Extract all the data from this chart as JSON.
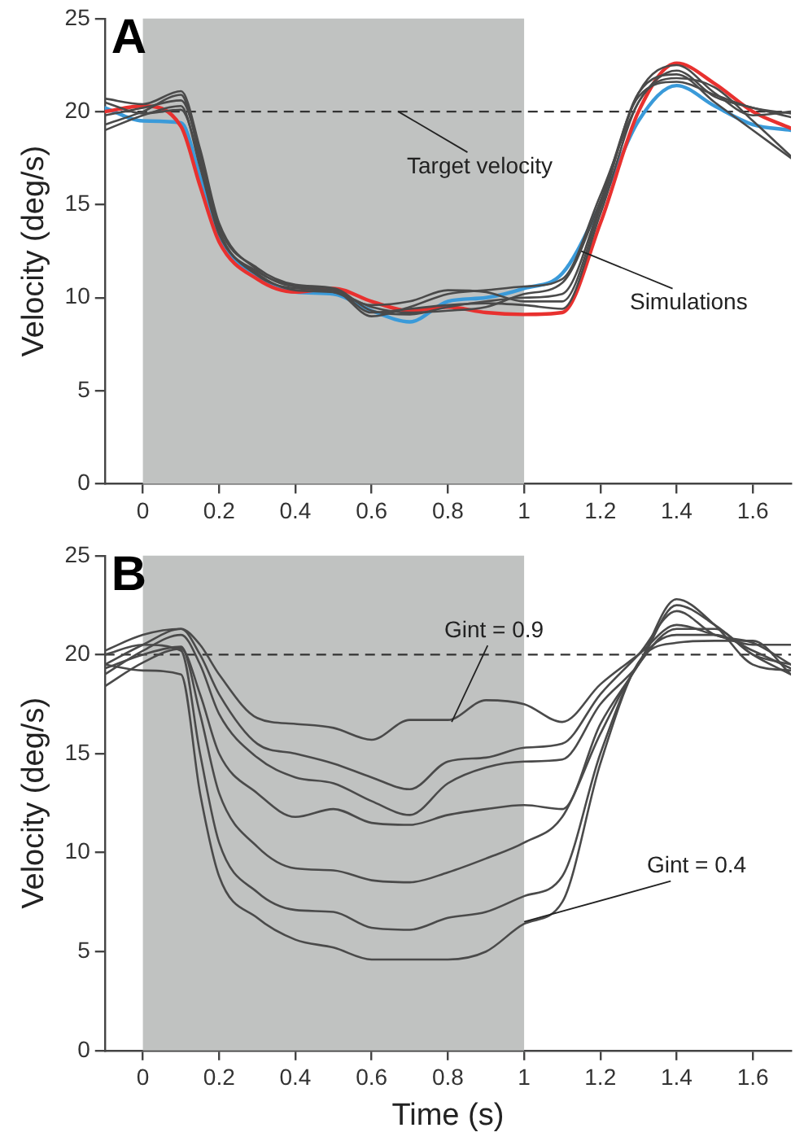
{
  "chart_data": [
    {
      "type": "line",
      "ylabel": "Velocity (deg/s)",
      "annotations": [
        "A",
        {
          "text": "Target velocity",
          "x": 0.67,
          "y": 20
        },
        {
          "text": "Simulations",
          "x": 1.15,
          "y": 12.5
        }
      ],
      "x": [
        -0.1,
        0,
        0.1,
        0.15,
        0.2,
        0.3,
        0.4,
        0.5,
        0.6,
        0.7,
        0.8,
        0.9,
        1.0,
        1.1,
        1.2,
        1.3,
        1.4,
        1.5,
        1.6,
        1.7
      ],
      "series": [
        {
          "color": "#4a4a4a",
          "values": [
            20.7,
            20.4,
            21.1,
            18,
            14,
            11.5,
            10.6,
            10.5,
            9.3,
            9.1,
            9.5,
            9.8,
            10,
            10.2,
            15,
            21,
            22.5,
            21,
            19.8,
            20
          ]
        },
        {
          "color": "#4a4a4a",
          "values": [
            19.3,
            20,
            20.9,
            17.5,
            13.6,
            11.2,
            10.5,
            10.4,
            9.0,
            9.5,
            10.2,
            10.4,
            10.6,
            11,
            15.5,
            20.5,
            22.2,
            20.8,
            20.2,
            19.7
          ]
        },
        {
          "color": "#4a4a4a",
          "values": [
            19,
            19.8,
            20.3,
            17,
            13.4,
            11.4,
            10.6,
            10.3,
            9.6,
            9.8,
            10.4,
            10.3,
            9.8,
            9.8,
            14.8,
            21,
            22,
            20.5,
            19,
            17.5
          ]
        },
        {
          "color": "#4a4a4a",
          "values": [
            19.8,
            20.2,
            20.6,
            17.8,
            13.8,
            11.6,
            10.7,
            10.5,
            9.2,
            9.4,
            9.6,
            9.7,
            9.6,
            9.4,
            14.5,
            20.5,
            21.8,
            21.3,
            19.5,
            17.6
          ]
        },
        {
          "color": "#4a4a4a",
          "values": [
            20.5,
            19.9,
            20.1,
            17.3,
            13.5,
            11.3,
            10.4,
            10.3,
            9.5,
            9.2,
            9.3,
            9.5,
            10.2,
            10.8,
            15.2,
            20.8,
            21.6,
            20.9,
            20.2,
            19.9
          ]
        },
        {
          "color": "#e8312f",
          "values": [
            20,
            20.3,
            19.2,
            16,
            13,
            11,
            10.3,
            10.5,
            9.8,
            9.3,
            9.5,
            9.2,
            9.1,
            9.2,
            14,
            20,
            22.6,
            21.5,
            20,
            19.1
          ]
        },
        {
          "color": "#3a9ad9",
          "values": [
            20.2,
            19.5,
            19.4,
            16.5,
            13.2,
            11.2,
            10.3,
            10.2,
            9.3,
            8.7,
            9.8,
            10,
            10.5,
            11.3,
            15,
            19.5,
            21.4,
            20.3,
            19.3,
            19
          ]
        }
      ],
      "xlim": [
        -0.1,
        1.7
      ],
      "xticks": [
        0,
        0.2,
        0.4,
        0.6,
        0.8,
        1,
        1.2,
        1.4,
        1.6
      ],
      "ylim": [
        0,
        25
      ],
      "yticks": [
        0,
        5,
        10,
        15,
        20,
        25
      ],
      "ref_lines": [
        {
          "axis": "y",
          "value": 20,
          "color": "#333333",
          "line_style": "dashed"
        }
      ],
      "bands": [
        {
          "axis": "x",
          "from": 0,
          "to": 1,
          "color": "#c0c2c1"
        }
      ],
      "grid": false,
      "legend": false,
      "marker": "none",
      "line_style": "solid"
    },
    {
      "type": "line",
      "xlabel": "Time (s)",
      "ylabel": "Velocity (deg/s)",
      "annotations": [
        "B",
        {
          "text": "Gint = 0.9",
          "x": 0.81,
          "y": 16.6
        },
        {
          "text": "Gint = 0.4",
          "x": 1.0,
          "y": 6.5
        }
      ],
      "x": [
        -0.1,
        0,
        0.1,
        0.15,
        0.2,
        0.3,
        0.4,
        0.5,
        0.6,
        0.7,
        0.8,
        0.9,
        1.0,
        1.1,
        1.2,
        1.3,
        1.4,
        1.5,
        1.6,
        1.7
      ],
      "series": [
        {
          "color": "#4a4a4a",
          "values": [
            19.5,
            20.5,
            21.3,
            20.5,
            19,
            16.8,
            16.5,
            16.3,
            15.7,
            16.7,
            16.7,
            17.7,
            17.5,
            16.6,
            18.5,
            20,
            21.5,
            21,
            20.5,
            20.5
          ]
        },
        {
          "color": "#4a4a4a",
          "values": [
            20.2,
            21,
            21.3,
            20,
            18,
            15.5,
            15,
            14.5,
            13.8,
            13.2,
            14.6,
            14.8,
            15.3,
            15.5,
            18,
            20,
            22.2,
            21,
            20.6,
            19.5
          ]
        },
        {
          "color": "#4a4a4a",
          "values": [
            19,
            20.2,
            21,
            19.5,
            17,
            14.8,
            13.8,
            13.5,
            12.6,
            11.9,
            13.5,
            14.3,
            14.6,
            14.7,
            17.5,
            19.5,
            22.5,
            21.5,
            20,
            19
          ]
        },
        {
          "color": "#4a4a4a",
          "values": [
            18.4,
            19.6,
            20.3,
            18,
            15,
            13,
            11.8,
            12.2,
            11.5,
            11.4,
            11.9,
            12.2,
            12.4,
            12.2,
            16.5,
            19.5,
            22.8,
            21.5,
            19.5,
            19.2
          ]
        },
        {
          "color": "#4a4a4a",
          "values": [
            19.3,
            20,
            20.4,
            17,
            13,
            10.3,
            9.2,
            9.1,
            8.6,
            8.5,
            9,
            9.7,
            10.5,
            11.8,
            16,
            19.5,
            21.3,
            21.3,
            20,
            19.5
          ]
        },
        {
          "color": "#4a4a4a",
          "values": [
            20,
            20.5,
            20.2,
            15,
            10.5,
            8,
            7.1,
            7,
            6.2,
            6.1,
            6.7,
            7,
            7.8,
            8.8,
            15,
            19.6,
            21,
            21,
            20.2,
            19.3
          ]
        },
        {
          "color": "#4a4a4a",
          "values": [
            19.5,
            19.2,
            19,
            13,
            8.8,
            6.7,
            5.6,
            5.2,
            4.6,
            4.6,
            4.6,
            5,
            6.4,
            7.5,
            14.5,
            19.6,
            20.6,
            20.7,
            20.7,
            19
          ]
        }
      ],
      "xlim": [
        -0.1,
        1.7
      ],
      "xticks": [
        0,
        0.2,
        0.4,
        0.6,
        0.8,
        1,
        1.2,
        1.4,
        1.6
      ],
      "ylim": [
        0,
        25
      ],
      "yticks": [
        0,
        5,
        10,
        15,
        20,
        25
      ],
      "ref_lines": [
        {
          "axis": "y",
          "value": 20,
          "color": "#333333",
          "line_style": "dashed"
        }
      ],
      "bands": [
        {
          "axis": "x",
          "from": 0,
          "to": 1,
          "color": "#c0c2c1"
        }
      ],
      "grid": false,
      "legend": false,
      "marker": "none",
      "line_style": "solid"
    }
  ]
}
